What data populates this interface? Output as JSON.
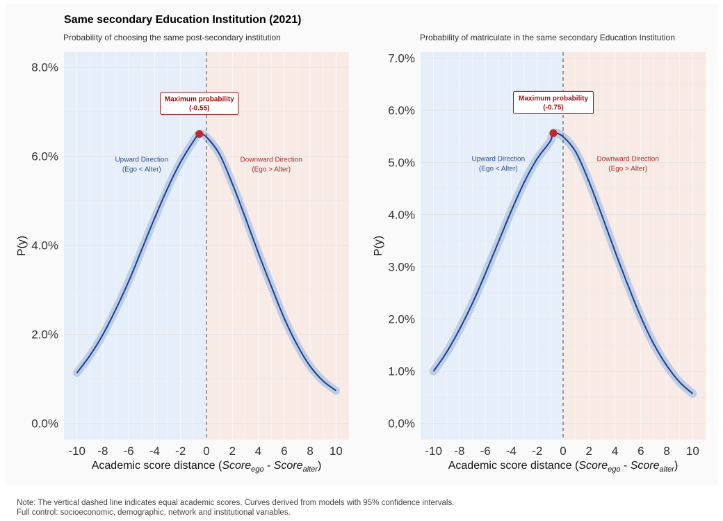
{
  "title": "Same secondary Education Institution (2021)",
  "footnote": [
    "Note: The vertical dashed line indicates equal academic scores. Curves derived from models with 95% confidence intervals.",
    "Full control: socioeconomic, demographic, network and institutional variables."
  ],
  "colors": {
    "upward_region": "#e6eff9",
    "downward_region": "#f8ebe6",
    "curve": "#1a3e8c",
    "ci_band": "#b4c8e3",
    "max_point": "#c0272d",
    "max_label": "#9b0e0e",
    "upward_text": "#2b4f8c",
    "downward_text": "#a0302a"
  },
  "chart_data": [
    {
      "type": "line",
      "subtitle": "Probability of choosing the same post-secondary institution",
      "xlabel_prefix": "Academic score distance (",
      "xlabel_var1": "Score",
      "xlabel_sub1": "ego",
      "xlabel_sep": " - ",
      "xlabel_var2": "Score",
      "xlabel_sub2": "alter",
      "xlabel_suffix": ")",
      "ylabel": "P(y)",
      "xlim": [
        -11,
        11
      ],
      "ylim": [
        -0.0037,
        0.0834
      ],
      "xticks": [
        -10,
        -8,
        -6,
        -4,
        -2,
        0,
        2,
        4,
        6,
        8,
        10
      ],
      "xtick_labels": [
        "-10",
        "-8",
        "-6",
        "-4",
        "-2",
        "0",
        "2",
        "4",
        "6",
        "8",
        "10"
      ],
      "yticks": [
        0,
        0.02,
        0.04,
        0.06,
        0.08
      ],
      "ytick_labels": [
        "0.0%",
        "2.0%",
        "4.0%",
        "6.0%",
        "8.0%"
      ],
      "grid": true,
      "reference_line_x": 0,
      "series": [
        {
          "x": [
            -10,
            -9,
            -8,
            -7,
            -6,
            -5,
            -4,
            -3,
            -2,
            -1,
            -0.55,
            0,
            1,
            2,
            3,
            4,
            5,
            6,
            7,
            8,
            9,
            10
          ],
          "y": [
            0.0113,
            0.0152,
            0.0199,
            0.0256,
            0.0319,
            0.039,
            0.0461,
            0.0528,
            0.0587,
            0.0634,
            0.065,
            0.0643,
            0.0605,
            0.0538,
            0.0462,
            0.0383,
            0.0308,
            0.0236,
            0.0176,
            0.0128,
            0.0095,
            0.0073
          ],
          "ci_half_width": 0.0009
        }
      ],
      "max_point": {
        "x": -0.55,
        "y": 0.065,
        "label_line1": "Maximum probability",
        "label_line2": "(-0.55)"
      },
      "regions": {
        "upward": {
          "line1": "Upward Direction",
          "line2": "(Ego < Alter)"
        },
        "downward": {
          "line1": "Downward Direction",
          "line2": "(Ego > Alter)"
        }
      }
    },
    {
      "type": "line",
      "subtitle": "Probability of matriculate in the same secondary Education Institution",
      "xlabel_prefix": "Academic score distance (",
      "xlabel_var1": "Score",
      "xlabel_sub1": "ego",
      "xlabel_sep": " - ",
      "xlabel_var2": "Score",
      "xlabel_sub2": "alter",
      "xlabel_suffix": ")",
      "ylabel": "P(y)",
      "xlim": [
        -11,
        11
      ],
      "ylim": [
        -0.0031,
        0.0711
      ],
      "xticks": [
        -10,
        -8,
        -6,
        -4,
        -2,
        0,
        2,
        4,
        6,
        8,
        10
      ],
      "xtick_labels": [
        "-10",
        "-8",
        "-6",
        "-4",
        "-2",
        "0",
        "2",
        "4",
        "6",
        "8",
        "10"
      ],
      "yticks": [
        0,
        0.01,
        0.02,
        0.03,
        0.04,
        0.05,
        0.06,
        0.07
      ],
      "ytick_labels": [
        "0.0%",
        "1.0%",
        "2.0%",
        "3.0%",
        "4.0%",
        "5.0%",
        "6.0%",
        "7.0%"
      ],
      "grid": true,
      "reference_line_x": 0,
      "series": [
        {
          "x": [
            -10,
            -9,
            -8,
            -7,
            -6,
            -5,
            -4,
            -3,
            -2,
            -1,
            -0.75,
            0,
            1,
            2,
            3,
            4,
            5,
            6,
            7,
            8,
            9,
            10
          ],
          "y": [
            0.01,
            0.0136,
            0.018,
            0.023,
            0.0287,
            0.0347,
            0.0407,
            0.0462,
            0.0507,
            0.054,
            0.0556,
            0.0549,
            0.0519,
            0.0463,
            0.0398,
            0.033,
            0.0265,
            0.0204,
            0.0152,
            0.0111,
            0.0079,
            0.0057
          ],
          "ci_half_width": 0.0008
        }
      ],
      "max_point": {
        "x": -0.75,
        "y": 0.0556,
        "label_line1": "Maximum probability",
        "label_line2": "(-0.75)"
      },
      "regions": {
        "upward": {
          "line1": "Upward Direction",
          "line2": "(Ego < Alter)"
        },
        "downward": {
          "line1": "Downward Direction",
          "line2": "(Ego > Alter)"
        }
      }
    }
  ]
}
